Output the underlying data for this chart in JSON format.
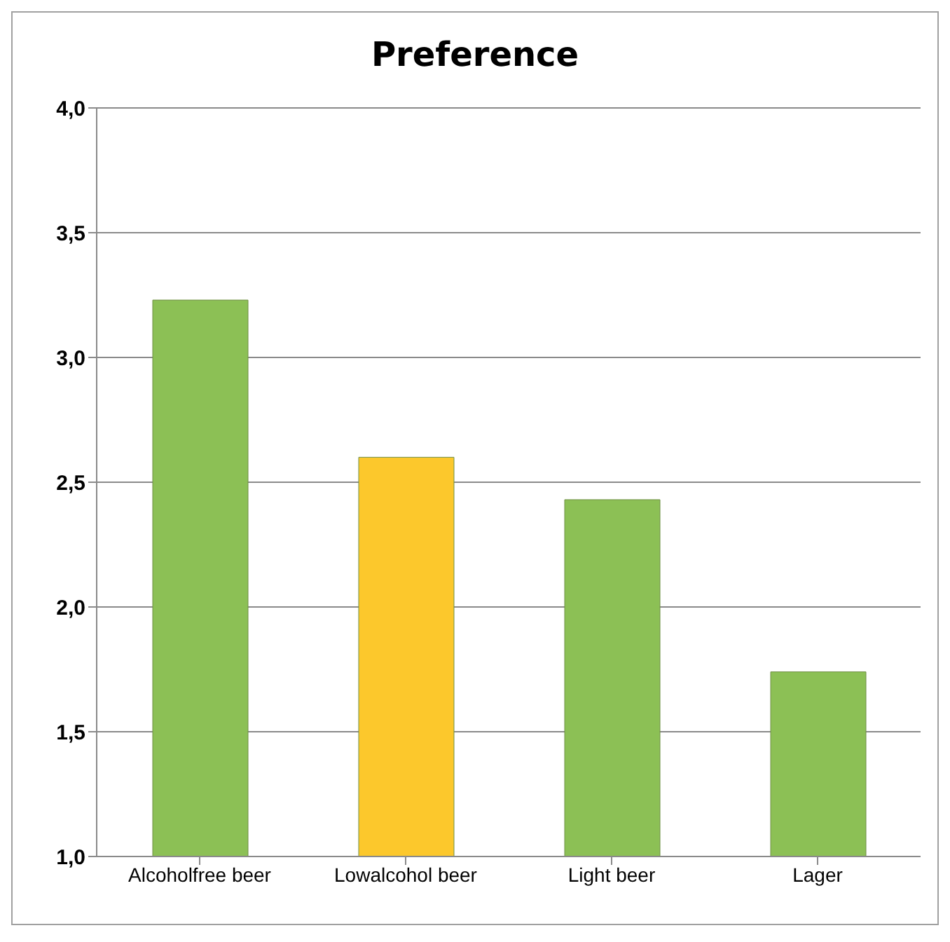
{
  "chart_data": {
    "type": "bar",
    "title": "Preference",
    "categories": [
      "Alcoholfree beer",
      "Lowalcohol beer",
      "Light  beer",
      "Lager"
    ],
    "values": [
      3.23,
      2.6,
      2.43,
      1.74
    ],
    "colors": [
      "#8cc055",
      "#fcc82c",
      "#8cc055",
      "#8cc055"
    ],
    "ylim": [
      1,
      4
    ],
    "yticks": [
      {
        "value": 1,
        "label": "1,0"
      },
      {
        "value": 1.5,
        "label": "1,5"
      },
      {
        "value": 2,
        "label": "2,0"
      },
      {
        "value": 2.5,
        "label": "2,5"
      },
      {
        "value": 3,
        "label": "3,0"
      },
      {
        "value": 3.5,
        "label": "3,5"
      },
      {
        "value": 4,
        "label": "4,0"
      }
    ],
    "grid": "y",
    "legend": false
  }
}
